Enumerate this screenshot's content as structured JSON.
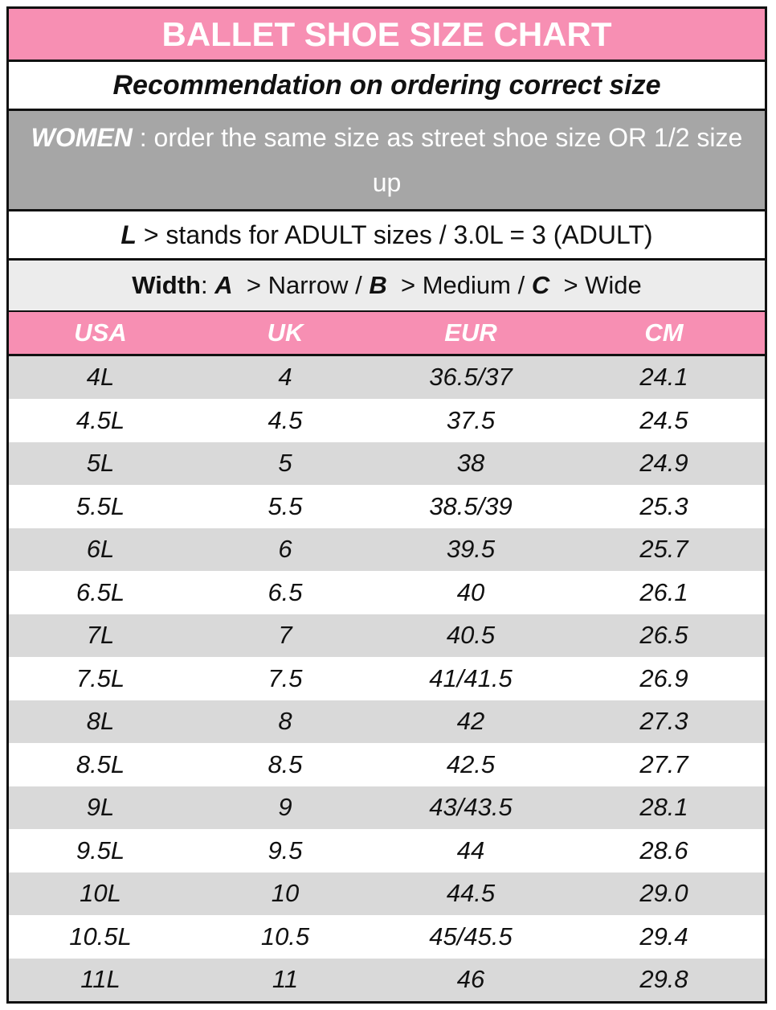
{
  "header": {
    "title": "BALLET SHOE SIZE CHART"
  },
  "recommendation": "Recommendation on ordering correct size",
  "women": {
    "label": "WOMEN",
    "text": ": order the same size as street shoe size OR 1/2 size up"
  },
  "adult": {
    "label": "L",
    "text": "> stands for ADULT sizes / 3.0L = 3 (ADULT)"
  },
  "width": {
    "label": "Width",
    "colon": ":",
    "a": "A",
    "a_text": "> Narrow /",
    "b": "B",
    "b_text": "> Medium /",
    "c": "C",
    "c_text": "> Wide"
  },
  "table": {
    "columns": [
      "USA",
      "UK",
      "EUR",
      "CM"
    ],
    "rows": [
      [
        "4L",
        "4",
        "36.5/37",
        "24.1"
      ],
      [
        "4.5L",
        "4.5",
        "37.5",
        "24.5"
      ],
      [
        "5L",
        "5",
        "38",
        "24.9"
      ],
      [
        "5.5L",
        "5.5",
        "38.5/39",
        "25.3"
      ],
      [
        "6L",
        "6",
        "39.5",
        "25.7"
      ],
      [
        "6.5L",
        "6.5",
        "40",
        "26.1"
      ],
      [
        "7L",
        "7",
        "40.5",
        "26.5"
      ],
      [
        "7.5L",
        "7.5",
        "41/41.5",
        "26.9"
      ],
      [
        "8L",
        "8",
        "42",
        "27.3"
      ],
      [
        "8.5L",
        "8.5",
        "42.5",
        "27.7"
      ],
      [
        "9L",
        "9",
        "43/43.5",
        "28.1"
      ],
      [
        "9.5L",
        "9.5",
        "44",
        "28.6"
      ],
      [
        "10L",
        "10",
        "44.5",
        "29.0"
      ],
      [
        "10.5L",
        "10.5",
        "45/45.5",
        "29.4"
      ],
      [
        "11L",
        "11",
        "46",
        "29.8"
      ]
    ]
  }
}
